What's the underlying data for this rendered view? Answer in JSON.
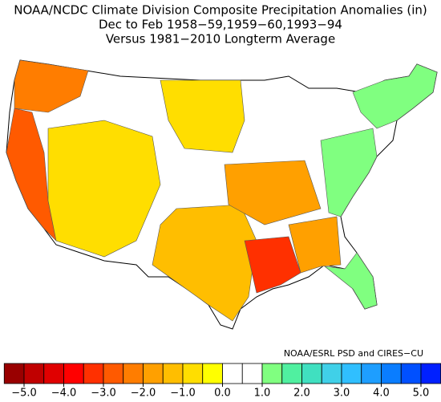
{
  "title": [
    "NOAA/NCDC Climate Division Composite Precipitation Anomalies (in)",
    "Dec to Feb  1958−59,1959−60,1993−94",
    "Versus 1981−2010 Longterm Average"
  ],
  "credit": "NOAA/ESRL PSD and CIRES−CU",
  "colorbar": {
    "ticks": [
      {
        "value": -5,
        "label": "−5.0"
      },
      {
        "value": -4,
        "label": "−4.0"
      },
      {
        "value": -3,
        "label": "−3.0"
      },
      {
        "value": -2,
        "label": "−2.0"
      },
      {
        "value": -1,
        "label": "−1.0"
      },
      {
        "value": 0,
        "label": "0.0"
      },
      {
        "value": 1,
        "label": "1.0"
      },
      {
        "value": 2,
        "label": "2.0"
      },
      {
        "value": 3,
        "label": "3.0"
      },
      {
        "value": 4,
        "label": "4.0"
      },
      {
        "value": 5,
        "label": "5.0"
      }
    ],
    "colors": [
      "#990000",
      "#c00000",
      "#e00000",
      "#ff0000",
      "#ff3000",
      "#ff5a00",
      "#ff7d00",
      "#ffa000",
      "#ffbe00",
      "#ffde00",
      "#ffff00",
      "#ffffff",
      "#ffffff",
      "#80ff80",
      "#50f0a0",
      "#40e0c0",
      "#40d0e8",
      "#30bfff",
      "#1e9eff",
      "#0a7dff",
      "#0050ff",
      "#0020ff"
    ]
  },
  "anomalies": [
    -3.0,
    -2.5,
    -1.0,
    -1.5,
    -3.5,
    -2.0,
    -2.0,
    1.0,
    1.0,
    1.0,
    -1.0
  ]
}
